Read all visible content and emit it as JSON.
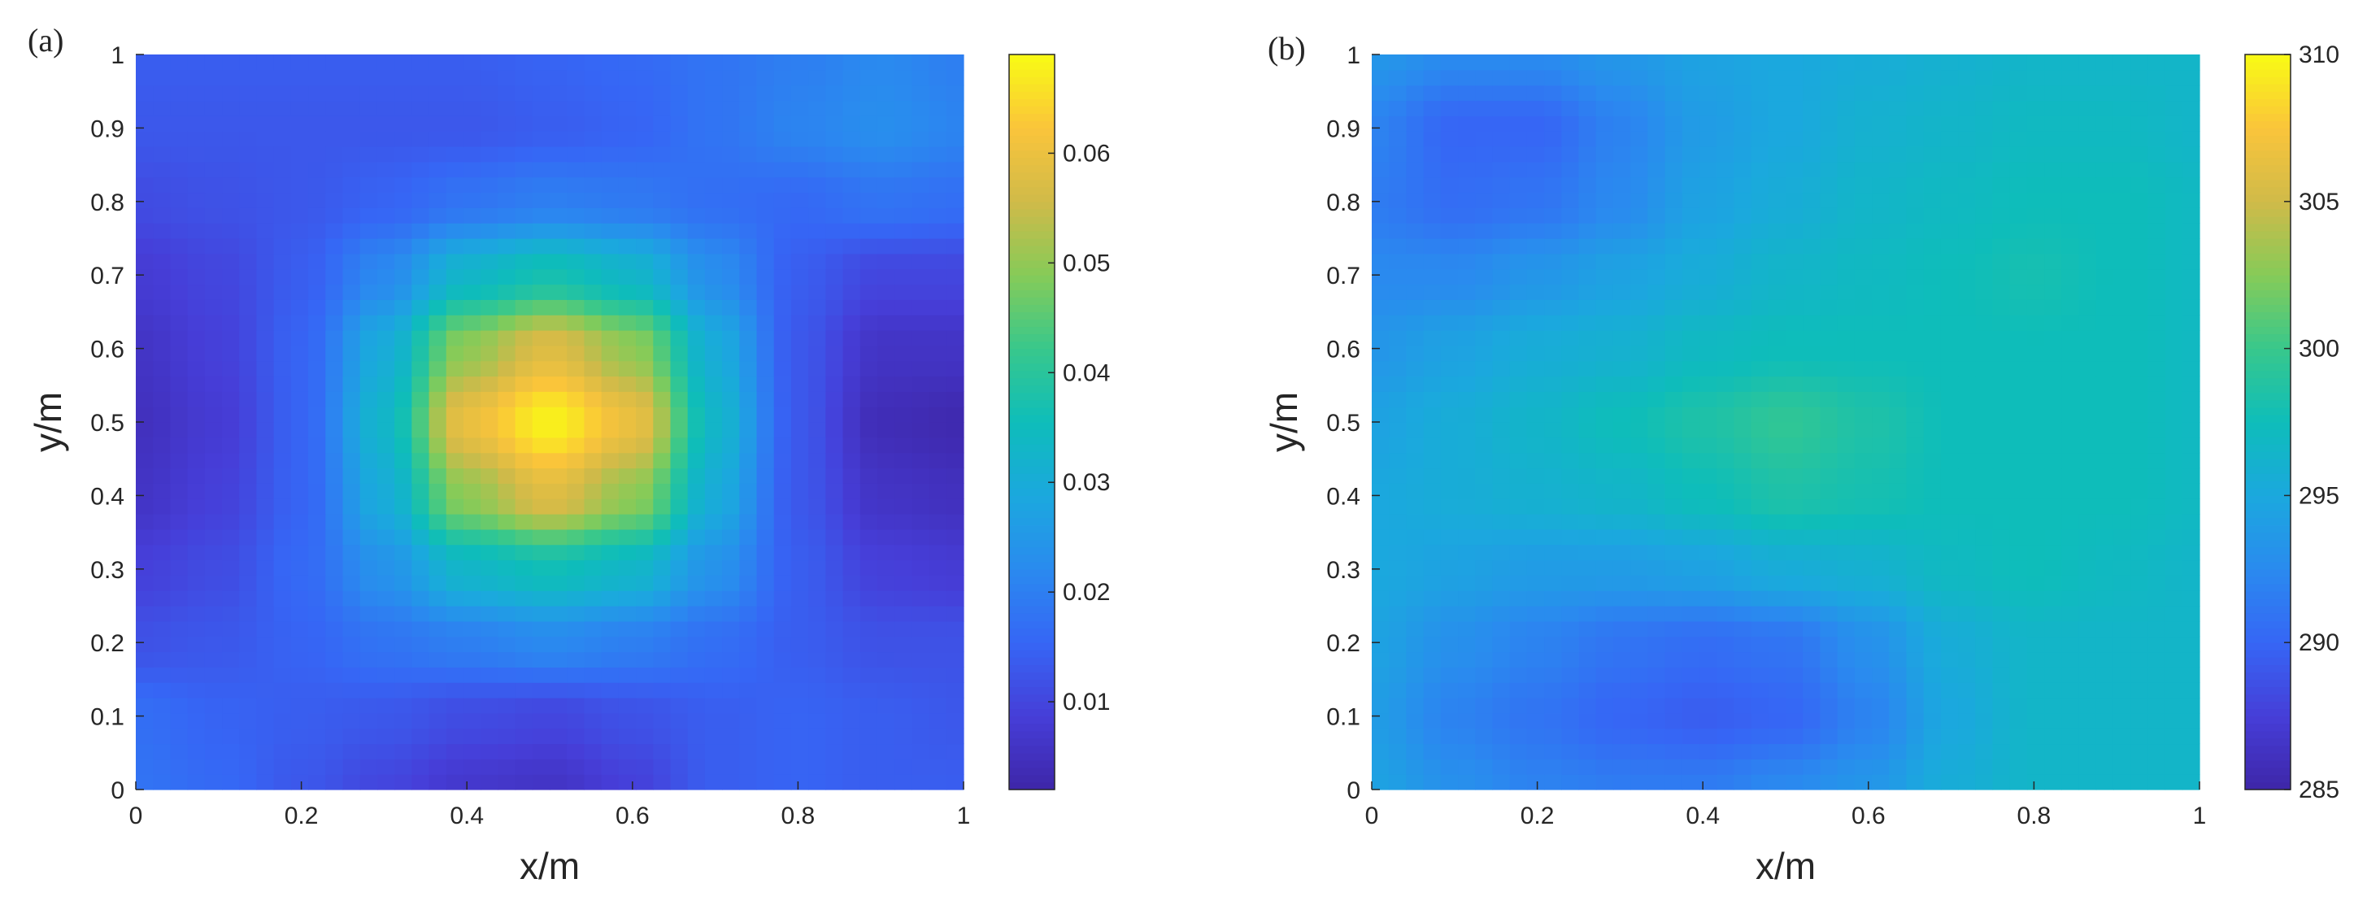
{
  "chart_data": [
    {
      "type": "heatmap",
      "panel_label": "(a)",
      "xlabel": "x/m",
      "ylabel": "y/m",
      "xlim": [
        0,
        1
      ],
      "ylim": [
        0,
        1
      ],
      "xticks": [
        "0",
        "0.2",
        "0.4",
        "0.6",
        "0.8",
        "1"
      ],
      "yticks": [
        "0",
        "0.1",
        "0.2",
        "0.3",
        "0.4",
        "0.5",
        "0.6",
        "0.7",
        "0.8",
        "0.9",
        "1"
      ],
      "colorbar": {
        "range": [
          0.002,
          0.069
        ],
        "ticks": [
          "0.01",
          "0.02",
          "0.03",
          "0.04",
          "0.05",
          "0.06"
        ],
        "tick_values": [
          0.01,
          0.02,
          0.03,
          0.04,
          0.05,
          0.06
        ]
      },
      "grid": false,
      "x": [
        0,
        0.1,
        0.2,
        0.3,
        0.4,
        0.5,
        0.6,
        0.7,
        0.8,
        0.9,
        1
      ],
      "y": [
        0,
        0.1,
        0.2,
        0.3,
        0.4,
        0.5,
        0.6,
        0.7,
        0.8,
        0.9,
        1
      ],
      "z": [
        [
          0.018,
          0.016,
          0.013,
          0.01,
          0.007,
          0.006,
          0.009,
          0.014,
          0.015,
          0.014,
          0.014
        ],
        [
          0.017,
          0.015,
          0.014,
          0.013,
          0.011,
          0.01,
          0.012,
          0.014,
          0.015,
          0.014,
          0.013
        ],
        [
          0.012,
          0.013,
          0.015,
          0.018,
          0.02,
          0.022,
          0.02,
          0.017,
          0.014,
          0.012,
          0.012
        ],
        [
          0.009,
          0.011,
          0.016,
          0.024,
          0.033,
          0.036,
          0.033,
          0.024,
          0.014,
          0.009,
          0.008
        ],
        [
          0.006,
          0.009,
          0.015,
          0.03,
          0.05,
          0.058,
          0.05,
          0.03,
          0.013,
          0.006,
          0.005
        ],
        [
          0.005,
          0.008,
          0.015,
          0.033,
          0.06,
          0.068,
          0.06,
          0.033,
          0.013,
          0.004,
          0.003
        ],
        [
          0.006,
          0.009,
          0.015,
          0.03,
          0.05,
          0.058,
          0.05,
          0.03,
          0.013,
          0.006,
          0.006
        ],
        [
          0.008,
          0.01,
          0.014,
          0.022,
          0.033,
          0.037,
          0.033,
          0.023,
          0.014,
          0.01,
          0.01
        ],
        [
          0.011,
          0.012,
          0.013,
          0.015,
          0.018,
          0.02,
          0.019,
          0.017,
          0.016,
          0.018,
          0.017
        ],
        [
          0.013,
          0.013,
          0.013,
          0.013,
          0.013,
          0.014,
          0.015,
          0.018,
          0.021,
          0.023,
          0.021
        ],
        [
          0.014,
          0.014,
          0.014,
          0.014,
          0.014,
          0.015,
          0.016,
          0.018,
          0.02,
          0.022,
          0.02
        ]
      ]
    },
    {
      "type": "heatmap",
      "panel_label": "(b)",
      "xlabel": "x/m",
      "ylabel": "y/m",
      "xlim": [
        0,
        1
      ],
      "ylim": [
        0,
        1
      ],
      "xticks": [
        "0",
        "0.2",
        "0.4",
        "0.6",
        "0.8",
        "1"
      ],
      "yticks": [
        "0",
        "0.1",
        "0.2",
        "0.3",
        "0.4",
        "0.5",
        "0.6",
        "0.7",
        "0.8",
        "0.9",
        "1"
      ],
      "colorbar": {
        "range": [
          285,
          310
        ],
        "ticks": [
          "285",
          "290",
          "295",
          "300",
          "305",
          "310"
        ],
        "tick_values": [
          285,
          290,
          295,
          300,
          305,
          310
        ]
      },
      "grid": false,
      "x": [
        0,
        0.1,
        0.2,
        0.3,
        0.4,
        0.5,
        0.6,
        0.7,
        0.8,
        0.9,
        1
      ],
      "y": [
        0,
        0.1,
        0.2,
        0.3,
        0.4,
        0.5,
        0.6,
        0.7,
        0.8,
        0.9,
        1
      ],
      "z": [
        [
          294.5,
          293.0,
          292.0,
          291.5,
          291.5,
          292.5,
          293.5,
          295.5,
          296.5,
          296.5,
          296.5
        ],
        [
          294.0,
          292.0,
          291.0,
          290.0,
          289.5,
          290.0,
          292.0,
          295.0,
          296.5,
          296.5,
          296.5
        ],
        [
          294.5,
          293.0,
          292.0,
          291.0,
          290.5,
          291.0,
          293.0,
          295.5,
          296.5,
          296.5,
          296.5
        ],
        [
          295.0,
          294.5,
          294.0,
          294.0,
          294.5,
          295.5,
          296.0,
          297.0,
          297.5,
          297.0,
          296.5
        ],
        [
          295.0,
          295.5,
          296.0,
          296.5,
          297.5,
          298.5,
          298.0,
          297.5,
          297.5,
          297.5,
          297.0
        ],
        [
          294.5,
          295.5,
          296.5,
          297.5,
          298.5,
          299.5,
          298.5,
          297.5,
          297.5,
          297.5,
          297.0
        ],
        [
          293.5,
          294.5,
          295.5,
          296.0,
          297.0,
          297.5,
          297.5,
          297.5,
          297.5,
          297.5,
          297.0
        ],
        [
          292.5,
          292.5,
          293.5,
          294.5,
          295.5,
          296.5,
          297.0,
          297.5,
          298.0,
          297.5,
          297.0
        ],
        [
          291.5,
          290.5,
          291.0,
          292.5,
          294.5,
          295.5,
          296.5,
          297.0,
          297.5,
          297.5,
          297.0
        ],
        [
          292.0,
          290.0,
          290.0,
          292.0,
          294.0,
          295.0,
          296.0,
          296.5,
          297.0,
          297.0,
          296.5
        ],
        [
          293.5,
          292.5,
          292.5,
          293.5,
          294.5,
          295.0,
          295.5,
          296.0,
          296.5,
          296.5,
          296.5
        ]
      ]
    }
  ]
}
